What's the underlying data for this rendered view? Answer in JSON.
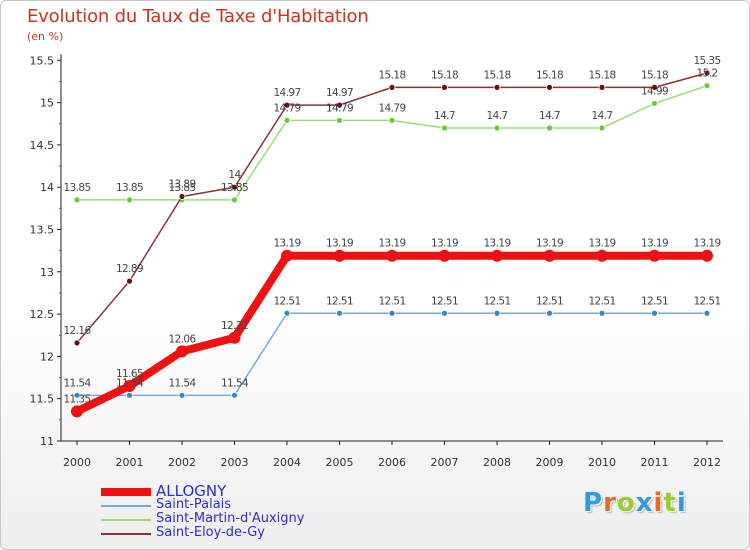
{
  "header": {
    "title": "Evolution du Taux de Taxe d'Habitation",
    "subtitle": "(en %)"
  },
  "brand": {
    "logo_text": "Proxiti",
    "logo_letter_colors": [
      "#3399dd",
      "#ee6622",
      "#99cc33",
      "#3399dd",
      "#ee6622",
      "#99cc33",
      "#3399dd"
    ]
  },
  "chart_data": {
    "type": "line",
    "title": "Evolution du Taux de Taxe d'Habitation",
    "subtitle": "(en %)",
    "xlabel": "",
    "ylabel": "",
    "x": [
      "2000",
      "2001",
      "2002",
      "2003",
      "2004",
      "2005",
      "2006",
      "2007",
      "2008",
      "2009",
      "2010",
      "2011",
      "2012"
    ],
    "ylim": [
      11,
      15.5
    ],
    "yticks": [
      "11",
      "11.5",
      "12",
      "12.5",
      "13",
      "13.5",
      "14",
      "14.5",
      "15",
      "15.5"
    ],
    "grid": false,
    "legend_position": "bottom-left",
    "series": [
      {
        "name": "ALLOGNY",
        "color": "#ee1111",
        "emphasis": true,
        "values": [
          11.35,
          11.65,
          12.06,
          12.22,
          13.19,
          13.19,
          13.19,
          13.19,
          13.19,
          13.19,
          13.19,
          13.19,
          13.19
        ],
        "labels": [
          "11.35",
          "11.65",
          "12.06",
          "12.22",
          "13.19",
          "13.19",
          "13.19",
          "13.19",
          "13.19",
          "13.19",
          "13.19",
          "13.19",
          "13.19"
        ]
      },
      {
        "name": "Saint-Palais",
        "color": "#77aadd",
        "point_color": "#3388cc",
        "values": [
          11.54,
          11.54,
          11.54,
          11.54,
          12.51,
          12.51,
          12.51,
          12.51,
          12.51,
          12.51,
          12.51,
          12.51,
          12.51
        ],
        "labels": [
          "11.54",
          "11.54",
          "11.54",
          "11.54",
          "12.51",
          "12.51",
          "12.51",
          "12.51",
          "12.51",
          "12.51",
          "12.51",
          "12.51",
          "12.51"
        ]
      },
      {
        "name": "Saint-Martin-d'Auxigny",
        "color": "#99dd77",
        "point_color": "#66cc33",
        "values": [
          13.85,
          13.85,
          13.85,
          13.85,
          14.79,
          14.79,
          14.79,
          14.7,
          14.7,
          14.7,
          14.7,
          14.99,
          15.2
        ],
        "labels": [
          "13.85",
          "13.85",
          "13.85",
          "13.85",
          "14.79",
          "14.79",
          "14.79",
          "14.7",
          "14.7",
          "14.7",
          "14.7",
          "14.99",
          "15.2"
        ]
      },
      {
        "name": "Saint-Eloy-de-Gy",
        "color": "#883333",
        "point_color": "#661111",
        "values": [
          12.16,
          12.89,
          13.89,
          14.0,
          14.97,
          14.97,
          15.18,
          15.18,
          15.18,
          15.18,
          15.18,
          15.18,
          15.35
        ],
        "labels": [
          "12.16",
          "12.89",
          "13.89",
          "14",
          "14.97",
          "14.97",
          "15.18",
          "15.18",
          "15.18",
          "15.18",
          "15.18",
          "15.18",
          "15.35"
        ]
      }
    ]
  }
}
